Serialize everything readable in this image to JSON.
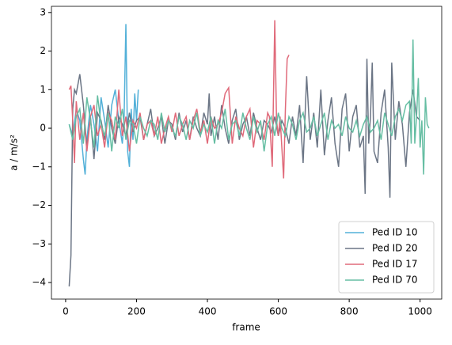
{
  "chart_data": {
    "type": "line",
    "xlabel": "frame",
    "ylabel": "a / m/s²",
    "xlim": [
      -40,
      1061
    ],
    "ylim": [
      -4.43,
      3.16
    ],
    "xticks": [
      0,
      200,
      400,
      600,
      800,
      1000
    ],
    "yticks": [
      {
        "value": -4,
        "label": "−4"
      },
      {
        "value": -3,
        "label": "−3"
      },
      {
        "value": -2,
        "label": "−2"
      },
      {
        "value": -1,
        "label": "−1"
      },
      0,
      1,
      2,
      3
    ],
    "legend": "lower right",
    "series": [
      {
        "name": "Ped ID 10",
        "color": "#52b0d8",
        "x": [
          10,
          20,
          30,
          40,
          50,
          55,
          60,
          70,
          80,
          90,
          100,
          110,
          120,
          130,
          140,
          150,
          160,
          165,
          170,
          175,
          180,
          185,
          190,
          195,
          200,
          205
        ],
        "values": [
          0.1,
          -0.2,
          0.5,
          0.2,
          -0.8,
          -1.2,
          -0.3,
          0.6,
          0.1,
          -0.6,
          0.8,
          0.2,
          -0.5,
          0.6,
          1.0,
          0.2,
          -0.4,
          0.3,
          2.7,
          -0.6,
          -1.0,
          0.5,
          -0.3,
          0.9,
          0.2,
          1.0
        ]
      },
      {
        "name": "Ped ID 20",
        "color": "#6b7585",
        "x": [
          10,
          15,
          20,
          25,
          30,
          40,
          50,
          60,
          70,
          80,
          90,
          100,
          110,
          120,
          130,
          140,
          150,
          160,
          170,
          180,
          190,
          200,
          210,
          220,
          230,
          240,
          250,
          260,
          270,
          280,
          290,
          300,
          310,
          320,
          330,
          340,
          350,
          360,
          370,
          380,
          390,
          400,
          405,
          410,
          420,
          430,
          440,
          450,
          460,
          470,
          480,
          490,
          500,
          510,
          520,
          530,
          540,
          550,
          560,
          570,
          580,
          590,
          600,
          610,
          620,
          630,
          640,
          650,
          660,
          670,
          680,
          690,
          700,
          710,
          720,
          730,
          740,
          750,
          760,
          770,
          780,
          790,
          800,
          810,
          820,
          830,
          840,
          845,
          850,
          855,
          860,
          865,
          870,
          880,
          890,
          900,
          910,
          915,
          920,
          930,
          940,
          950,
          960,
          970,
          980,
          990,
          1000
        ],
        "values": [
          -4.1,
          -3.3,
          0.5,
          1.0,
          0.9,
          1.4,
          0.6,
          -0.5,
          0.3,
          -0.8,
          0.4,
          0.2,
          -0.3,
          0.6,
          0.0,
          -0.4,
          0.3,
          0.1,
          -0.2,
          0.4,
          -0.1,
          0.2,
          0.3,
          -0.3,
          0.1,
          0.5,
          -0.2,
          0.0,
          0.3,
          -0.4,
          0.2,
          0.1,
          -0.3,
          0.4,
          -0.1,
          0.2,
          -0.3,
          0.3,
          0.0,
          -0.2,
          0.4,
          0.1,
          0.9,
          -0.2,
          0.3,
          -0.3,
          0.6,
          0.0,
          -0.4,
          0.2,
          0.5,
          -0.3,
          0.1,
          0.3,
          -0.2,
          0.4,
          0.0,
          -0.3,
          0.2,
          0.1,
          -0.1,
          0.3,
          -0.2,
          0.2,
          0.0,
          -0.4,
          0.3,
          -0.2,
          0.6,
          -0.9,
          1.35,
          -0.3,
          0.4,
          -0.5,
          1.0,
          -0.7,
          0.2,
          0.8,
          -0.4,
          -1.0,
          0.5,
          0.9,
          -0.6,
          0.3,
          0.6,
          -0.5,
          -0.2,
          -1.7,
          1.8,
          -0.4,
          0.3,
          1.7,
          -0.6,
          -0.9,
          0.4,
          1.0,
          -0.5,
          -1.8,
          1.7,
          -0.3,
          0.7,
          0.1,
          -1.0,
          0.4,
          1.0,
          0.3,
          0.2
        ]
      },
      {
        "name": "Ped ID 17",
        "color": "#e06a7a",
        "x": [
          10,
          15,
          20,
          25,
          30,
          40,
          50,
          60,
          70,
          80,
          90,
          100,
          110,
          120,
          130,
          140,
          150,
          160,
          170,
          180,
          190,
          200,
          210,
          220,
          230,
          240,
          250,
          260,
          270,
          280,
          290,
          300,
          310,
          320,
          330,
          340,
          350,
          360,
          370,
          380,
          390,
          400,
          410,
          420,
          430,
          440,
          450,
          460,
          470,
          480,
          490,
          500,
          510,
          520,
          530,
          540,
          550,
          560,
          570,
          575,
          583,
          590,
          595,
          600,
          605,
          615,
          620,
          625,
          630
        ],
        "values": [
          1.0,
          1.1,
          0.2,
          -0.9,
          0.7,
          -0.3,
          0.4,
          -0.6,
          0.3,
          0.6,
          -0.2,
          0.1,
          -0.5,
          0.4,
          0.2,
          -0.3,
          1.0,
          -0.2,
          0.3,
          -0.6,
          0.2,
          0.0,
          0.4,
          -0.3,
          0.1,
          0.2,
          -0.2,
          0.3,
          -0.4,
          0.0,
          0.3,
          -0.1,
          0.4,
          -0.2,
          0.1,
          0.3,
          -0.3,
          0.2,
          0.5,
          -0.1,
          0.2,
          -0.4,
          0.3,
          0.0,
          0.1,
          0.4,
          0.9,
          1.05,
          -0.4,
          0.3,
          0.0,
          -0.2,
          0.3,
          0.5,
          -0.5,
          0.2,
          0.1,
          -0.3,
          0.4,
          0.3,
          -1.0,
          2.8,
          0.2,
          -0.2,
          0.3,
          -1.3,
          0.5,
          1.8,
          1.9
        ]
      },
      {
        "name": "Ped ID 70",
        "color": "#66bea3",
        "x": [
          10,
          20,
          30,
          40,
          50,
          60,
          70,
          80,
          90,
          100,
          110,
          120,
          130,
          140,
          150,
          160,
          170,
          180,
          190,
          200,
          210,
          220,
          230,
          240,
          250,
          260,
          270,
          280,
          290,
          300,
          310,
          320,
          330,
          340,
          350,
          360,
          370,
          380,
          390,
          400,
          410,
          420,
          430,
          440,
          450,
          460,
          470,
          480,
          490,
          500,
          510,
          520,
          530,
          540,
          550,
          560,
          570,
          580,
          590,
          600,
          610,
          620,
          630,
          640,
          650,
          660,
          670,
          680,
          690,
          700,
          710,
          720,
          730,
          740,
          750,
          760,
          770,
          780,
          790,
          800,
          810,
          820,
          830,
          840,
          850,
          860,
          870,
          880,
          890,
          900,
          910,
          920,
          930,
          940,
          950,
          960,
          970,
          975,
          980,
          985,
          990,
          995,
          1000,
          1005,
          1010,
          1015,
          1020,
          1025
        ],
        "values": [
          0.1,
          -0.3,
          0.3,
          0.5,
          -0.4,
          0.8,
          0.2,
          -0.5,
          0.85,
          0.1,
          -0.2,
          0.4,
          -0.6,
          0.3,
          0.0,
          0.5,
          -0.3,
          0.2,
          0.1,
          -0.4,
          0.3,
          0.0,
          -0.2,
          0.2,
          0.1,
          -0.3,
          0.4,
          -0.1,
          0.2,
          0.0,
          -0.2,
          0.3,
          0.1,
          -0.3,
          0.2,
          0.0,
          0.4,
          -0.2,
          0.1,
          -0.1,
          0.3,
          -0.4,
          0.2,
          0.0,
          0.5,
          -0.3,
          0.1,
          0.2,
          -0.2,
          0.4,
          0.0,
          -0.3,
          0.3,
          -0.1,
          0.2,
          -0.6,
          0.1,
          0.3,
          -0.2,
          0.4,
          0.0,
          -0.2,
          0.3,
          0.1,
          -0.3,
          0.2,
          0.4,
          -0.1,
          0.0,
          0.3,
          -0.2,
          0.1,
          0.4,
          -0.3,
          0.2,
          0.0,
          0.1,
          -0.2,
          0.3,
          0.0,
          -0.1,
          0.2,
          -0.2,
          0.1,
          0.3,
          -0.1,
          0.0,
          0.2,
          -0.3,
          0.4,
          0.1,
          -0.2,
          0.3,
          0.5,
          0.2,
          0.6,
          0.7,
          -0.4,
          2.3,
          -0.4,
          0.3,
          1.3,
          -0.5,
          0.2,
          -1.2,
          0.8,
          0.1,
          0.0
        ]
      }
    ]
  }
}
